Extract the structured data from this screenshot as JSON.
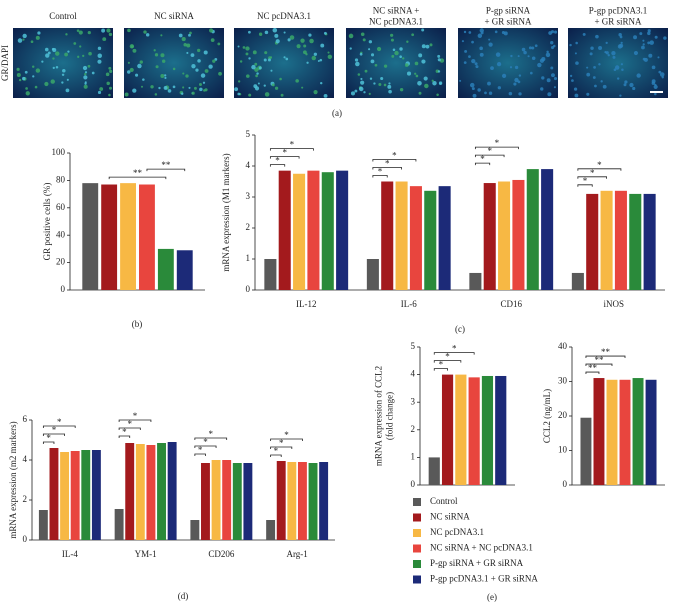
{
  "panel_a": {
    "ylabel": "GR/DAPI",
    "caption": "(a)",
    "labels": [
      [
        "Control"
      ],
      [
        "NC siRNA"
      ],
      [
        "NC pcDNA3.1"
      ],
      [
        "NC siRNA +",
        "NC pcDNA3.1"
      ],
      [
        "P-gp siRNA",
        "+ GR siRNA"
      ],
      [
        "P-gp pcDNA3.1",
        "+ GR siRNA"
      ]
    ]
  },
  "chart_data": [
    {
      "type": "bar",
      "ylabel": [
        "GR positive cells (%)"
      ],
      "caption": "(b)",
      "categories": [
        null
      ],
      "ylim": [
        0,
        100
      ],
      "yticks": [
        0,
        20,
        40,
        60,
        80,
        100
      ],
      "annotations": [
        "**",
        "**"
      ],
      "series": [
        {
          "name": "Control",
          "color": "#595959",
          "values": [
            78
          ]
        },
        {
          "name": "NC siRNA",
          "color": "#a31a1d",
          "values": [
            77
          ]
        },
        {
          "name": "NC pcDNA3.1",
          "color": "#f7b844",
          "values": [
            78
          ]
        },
        {
          "name": "NC siRNA + NC pcDNA3.1",
          "color": "#e8453e",
          "values": [
            77
          ]
        },
        {
          "name": "P-gp siRNA + GR siRNA",
          "color": "#2a8a3a",
          "values": [
            30
          ]
        },
        {
          "name": "P-gp pcDNA3.1 + GR siRNA",
          "color": "#1c2a78",
          "values": [
            29
          ]
        }
      ]
    },
    {
      "type": "bar",
      "ylabel": [
        "mRNA expression (M1 markers)"
      ],
      "caption": "(c)",
      "categories": [
        "IL-12",
        "IL-6",
        "CD16",
        "iNOS"
      ],
      "ylim": [
        0,
        5
      ],
      "yticks": [
        0,
        1,
        2,
        3,
        4,
        5
      ],
      "annotations": [
        "*",
        "*",
        "*",
        "*",
        "*",
        "*",
        "*",
        "*",
        "*",
        "*",
        "*",
        "*"
      ],
      "series": [
        {
          "name": "Control",
          "color": "#595959",
          "values": [
            1,
            1,
            0.55,
            0.55
          ]
        },
        {
          "name": "NC siRNA",
          "color": "#a31a1d",
          "values": [
            3.85,
            3.5,
            3.45,
            3.1
          ]
        },
        {
          "name": "NC pcDNA3.1",
          "color": "#f7b844",
          "values": [
            3.75,
            3.5,
            3.5,
            3.2
          ]
        },
        {
          "name": "NC siRNA + NC pcDNA3.1",
          "color": "#e8453e",
          "values": [
            3.85,
            3.35,
            3.55,
            3.2
          ]
        },
        {
          "name": "P-gp siRNA + GR siRNA",
          "color": "#2a8a3a",
          "values": [
            3.8,
            3.2,
            3.9,
            3.1
          ]
        },
        {
          "name": "P-gp pcDNA3.1 + GR siRNA",
          "color": "#1c2a78",
          "values": [
            3.85,
            3.35,
            3.9,
            3.1
          ]
        }
      ]
    },
    {
      "type": "bar",
      "ylabel": [
        "mRNA expression (m2 markers)"
      ],
      "caption": "(d)",
      "categories": [
        "IL-4",
        "YM-1",
        "CD206",
        "Arg-1"
      ],
      "ylim": [
        0,
        6
      ],
      "yticks": [
        0,
        2,
        4,
        6
      ],
      "annotations": [
        "*",
        "*",
        "*",
        "*",
        "*",
        "*",
        "*",
        "*",
        "*",
        "*",
        "*",
        "*"
      ],
      "series": [
        {
          "name": "Control",
          "color": "#595959",
          "values": [
            1.5,
            1.55,
            1,
            1
          ]
        },
        {
          "name": "NC siRNA",
          "color": "#a31a1d",
          "values": [
            4.6,
            4.85,
            3.85,
            3.95
          ]
        },
        {
          "name": "NC pcDNA3.1",
          "color": "#f7b844",
          "values": [
            4.4,
            4.8,
            4,
            3.9
          ]
        },
        {
          "name": "NC siRNA + NC pcDNA3.1",
          "color": "#e8453e",
          "values": [
            4.45,
            4.75,
            4,
            3.9
          ]
        },
        {
          "name": "P-gp siRNA + GR siRNA",
          "color": "#2a8a3a",
          "values": [
            4.5,
            4.85,
            3.85,
            3.85
          ]
        },
        {
          "name": "P-gp pcDNA3.1 + GR siRNA",
          "color": "#1c2a78",
          "values": [
            4.5,
            4.9,
            3.85,
            3.9
          ]
        }
      ]
    },
    {
      "type": "bar",
      "ylabel": [
        "mRNA expression of CCL2",
        "(fold change)"
      ],
      "caption": "(e)",
      "categories": [
        null
      ],
      "ylim": [
        0,
        5
      ],
      "yticks": [
        0,
        1,
        2,
        3,
        4,
        5
      ],
      "annotations": [
        "*",
        "*",
        "*"
      ],
      "legend": "below",
      "series": [
        {
          "name": "Control",
          "color": "#595959",
          "values": [
            1
          ]
        },
        {
          "name": "NC siRNA",
          "color": "#a31a1d",
          "values": [
            4
          ]
        },
        {
          "name": "NC pcDNA3.1",
          "color": "#f7b844",
          "values": [
            4
          ]
        },
        {
          "name": "NC siRNA + NC pcDNA3.1",
          "color": "#e8453e",
          "values": [
            3.9
          ]
        },
        {
          "name": "P-gp siRNA + GR siRNA",
          "color": "#2a8a3a",
          "values": [
            3.95
          ]
        },
        {
          "name": "P-gp pcDNA3.1 + GR siRNA",
          "color": "#1c2a78",
          "values": [
            3.95
          ]
        }
      ]
    },
    {
      "type": "bar",
      "ylabel": [
        "CCL2 (ng/mL)"
      ],
      "categories": [
        null
      ],
      "ylim": [
        0,
        40
      ],
      "yticks": [
        0,
        10,
        20,
        30,
        40
      ],
      "annotations": [
        "**",
        "**",
        "**"
      ],
      "series": [
        {
          "name": "Control",
          "color": "#595959",
          "values": [
            19.5
          ]
        },
        {
          "name": "NC siRNA",
          "color": "#a31a1d",
          "values": [
            31
          ]
        },
        {
          "name": "NC pcDNA3.1",
          "color": "#f7b844",
          "values": [
            30.5
          ]
        },
        {
          "name": "NC siRNA + NC pcDNA3.1",
          "color": "#e8453e",
          "values": [
            30.5
          ]
        },
        {
          "name": "P-gp siRNA + GR siRNA",
          "color": "#2a8a3a",
          "values": [
            31
          ]
        },
        {
          "name": "P-gp pcDNA3.1 + GR siRNA",
          "color": "#1c2a78",
          "values": [
            30.5
          ]
        }
      ]
    }
  ]
}
